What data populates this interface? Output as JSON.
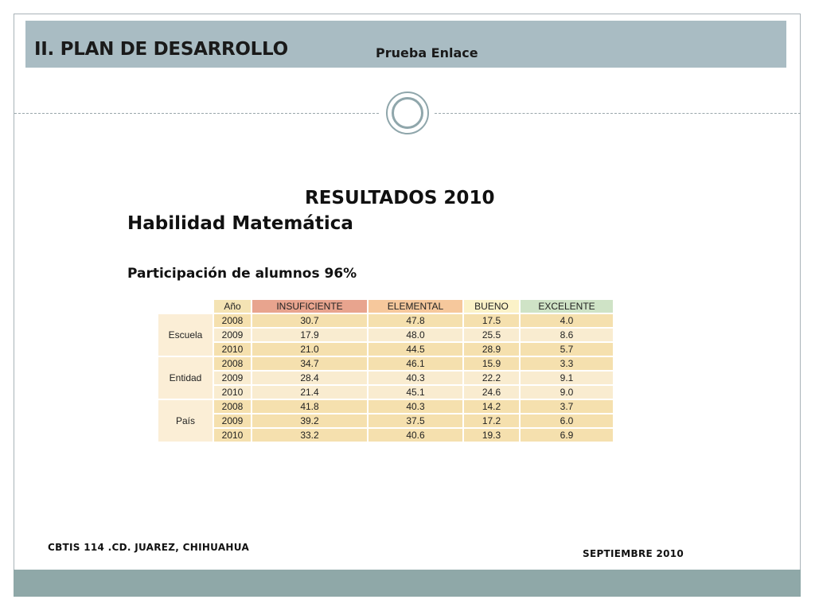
{
  "header": {
    "title": "II. PLAN DE DESARROLLO",
    "subtitle": "Prueba Enlace"
  },
  "content": {
    "results_title": "RESULTADOS 2010",
    "subject": "Habilidad Matemática",
    "participation": "Participación de alumnos  96%"
  },
  "table": {
    "headers": {
      "year": "Año",
      "insuficiente": "INSUFICIENTE",
      "elemental": "ELEMENTAL",
      "bueno": "BUENO",
      "excelente": "EXCELENTE"
    },
    "groups": [
      {
        "name": "Escuela",
        "rows": [
          {
            "year": "2008",
            "insuficiente": "30.7",
            "elemental": "47.8",
            "bueno": "17.5",
            "excelente": "4.0"
          },
          {
            "year": "2009",
            "insuficiente": "17.9",
            "elemental": "48.0",
            "bueno": "25.5",
            "excelente": "8.6"
          },
          {
            "year": "2010",
            "insuficiente": "21.0",
            "elemental": "44.5",
            "bueno": "28.9",
            "excelente": "5.7"
          }
        ]
      },
      {
        "name": "Entidad",
        "rows": [
          {
            "year": "2008",
            "insuficiente": "34.7",
            "elemental": "46.1",
            "bueno": "15.9",
            "excelente": "3.3"
          },
          {
            "year": "2009",
            "insuficiente": "28.4",
            "elemental": "40.3",
            "bueno": "22.2",
            "excelente": "9.1"
          },
          {
            "year": "2010",
            "insuficiente": "21.4",
            "elemental": "45.1",
            "bueno": "24.6",
            "excelente": "9.0"
          }
        ]
      },
      {
        "name": "País",
        "rows": [
          {
            "year": "2008",
            "insuficiente": "41.8",
            "elemental": "40.3",
            "bueno": "14.2",
            "excelente": "3.7"
          },
          {
            "year": "2009",
            "insuficiente": "39.2",
            "elemental": "37.5",
            "bueno": "17.2",
            "excelente": "6.0"
          },
          {
            "year": "2010",
            "insuficiente": "33.2",
            "elemental": "40.6",
            "bueno": "19.3",
            "excelente": "6.9"
          }
        ]
      }
    ]
  },
  "footer": {
    "left": "CBTIS 114 .CD. JUAREZ, CHIHUAHUA",
    "right": "SEPTIEMBRE 2010"
  },
  "colors": {
    "title_bar": "#a9bcc3",
    "bottom_bar": "#8fa8a8",
    "insuficiente": "#e8a48e",
    "elemental": "#f6c89c",
    "bueno": "#fbf2c8",
    "excelente": "#cfe3c6"
  }
}
